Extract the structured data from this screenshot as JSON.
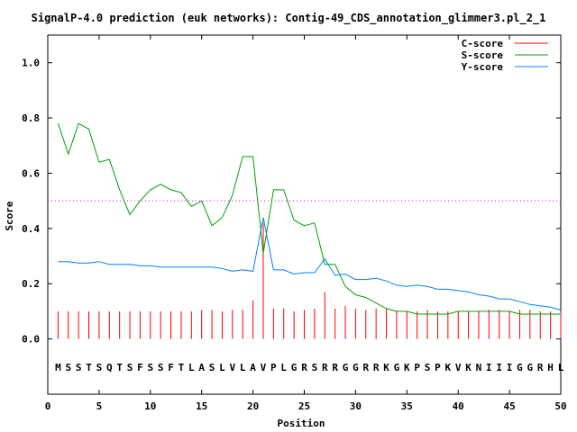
{
  "chart_data": {
    "type": "line",
    "title": "SignalP-4.0 prediction (euk networks): Contig-49_CDS_annotation_glimmer3.pl_2_1",
    "xlabel": "Position",
    "ylabel": "Score",
    "xlim": [
      0,
      50
    ],
    "ylim": [
      -0.2,
      1.1
    ],
    "x_ticks": [
      "0",
      "5",
      "10",
      "15",
      "20",
      "25",
      "30",
      "35",
      "40",
      "45",
      "50"
    ],
    "y_ticks": [
      "0.0",
      "0.2",
      "0.4",
      "0.6",
      "0.8",
      "1.0"
    ],
    "threshold": 0.5,
    "legend_position": "top-right",
    "sequence": [
      "M",
      "S",
      "S",
      "T",
      "S",
      "Q",
      "T",
      "S",
      "F",
      "S",
      "S",
      "F",
      "T",
      "L",
      "A",
      "S",
      "L",
      "V",
      "L",
      "A",
      "V",
      "P",
      "L",
      "G",
      "R",
      "S",
      "R",
      "R",
      "G",
      "G",
      "R",
      "R",
      "K",
      "G",
      "K",
      "P",
      "S",
      "P",
      "K",
      "V",
      "K",
      "N",
      "I",
      "I",
      "I",
      "G",
      "G",
      "R",
      "H",
      "L"
    ],
    "series": [
      {
        "name": "C-score",
        "color": "#ff0000",
        "style": "impulses",
        "x": [
          1,
          2,
          3,
          4,
          5,
          6,
          7,
          8,
          9,
          10,
          11,
          12,
          13,
          14,
          15,
          16,
          17,
          18,
          19,
          20,
          21,
          22,
          23,
          24,
          25,
          26,
          27,
          28,
          29,
          30,
          31,
          32,
          33,
          34,
          35,
          36,
          37,
          38,
          39,
          40,
          41,
          42,
          43,
          44,
          45,
          46,
          47,
          48,
          49,
          50
        ],
        "values": [
          0.1,
          0.1,
          0.1,
          0.1,
          0.1,
          0.1,
          0.1,
          0.1,
          0.1,
          0.1,
          0.1,
          0.1,
          0.1,
          0.1,
          0.105,
          0.105,
          0.1,
          0.105,
          0.105,
          0.14,
          0.42,
          0.11,
          0.11,
          0.1,
          0.105,
          0.11,
          0.17,
          0.11,
          0.12,
          0.11,
          0.105,
          0.11,
          0.11,
          0.1,
          0.1,
          0.1,
          0.105,
          0.1,
          0.1,
          0.1,
          0.1,
          0.1,
          0.105,
          0.105,
          0.1,
          0.105,
          0.105,
          0.1,
          0.1,
          0.1
        ]
      },
      {
        "name": "S-score",
        "color": "#00a000",
        "style": "line",
        "x": [
          1,
          2,
          3,
          4,
          5,
          6,
          7,
          8,
          9,
          10,
          11,
          12,
          13,
          14,
          15,
          16,
          17,
          18,
          19,
          20,
          21,
          22,
          23,
          24,
          25,
          26,
          27,
          28,
          29,
          30,
          31,
          32,
          33,
          34,
          35,
          36,
          37,
          38,
          39,
          40,
          41,
          42,
          43,
          44,
          45,
          46,
          47,
          48,
          49,
          50
        ],
        "values": [
          0.78,
          0.67,
          0.78,
          0.76,
          0.64,
          0.65,
          0.54,
          0.45,
          0.5,
          0.54,
          0.56,
          0.54,
          0.53,
          0.48,
          0.5,
          0.41,
          0.44,
          0.52,
          0.66,
          0.66,
          0.31,
          0.54,
          0.54,
          0.43,
          0.41,
          0.42,
          0.27,
          0.27,
          0.19,
          0.16,
          0.15,
          0.13,
          0.11,
          0.1,
          0.1,
          0.09,
          0.09,
          0.09,
          0.09,
          0.1,
          0.1,
          0.1,
          0.1,
          0.1,
          0.1,
          0.09,
          0.09,
          0.09,
          0.09,
          0.09
        ]
      },
      {
        "name": "Y-score",
        "color": "#0080ff",
        "style": "line",
        "x": [
          1,
          2,
          3,
          4,
          5,
          6,
          7,
          8,
          9,
          10,
          11,
          12,
          13,
          14,
          15,
          16,
          17,
          18,
          19,
          20,
          21,
          22,
          23,
          24,
          25,
          26,
          27,
          28,
          29,
          30,
          31,
          32,
          33,
          34,
          35,
          36,
          37,
          38,
          39,
          40,
          41,
          42,
          43,
          44,
          45,
          46,
          47,
          48,
          49,
          50
        ],
        "values": [
          0.28,
          0.28,
          0.275,
          0.275,
          0.28,
          0.27,
          0.27,
          0.27,
          0.265,
          0.265,
          0.26,
          0.26,
          0.26,
          0.26,
          0.26,
          0.26,
          0.255,
          0.245,
          0.25,
          0.245,
          0.44,
          0.25,
          0.25,
          0.235,
          0.24,
          0.24,
          0.29,
          0.23,
          0.235,
          0.215,
          0.215,
          0.22,
          0.21,
          0.195,
          0.19,
          0.195,
          0.19,
          0.18,
          0.18,
          0.175,
          0.17,
          0.16,
          0.155,
          0.145,
          0.145,
          0.135,
          0.125,
          0.12,
          0.115,
          0.105
        ]
      }
    ]
  }
}
